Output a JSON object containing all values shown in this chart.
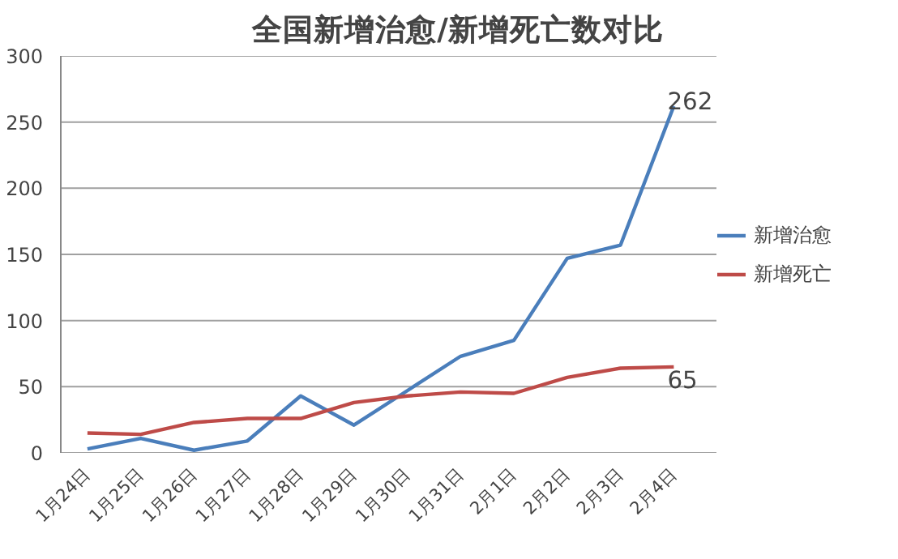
{
  "chart_data": {
    "type": "line",
    "title": "全国新增治愈/新增死亡数对比",
    "categories": [
      "1月24日",
      "1月25日",
      "1月26日",
      "1月27日",
      "1月28日",
      "1月29日",
      "1月30日",
      "1月31日",
      "2月1日",
      "2月2日",
      "2月3日",
      "2月4日"
    ],
    "series": [
      {
        "name": "新增治愈",
        "color": "#4a7ebb",
        "values": [
          3,
          11,
          2,
          9,
          43,
          21,
          47,
          73,
          85,
          147,
          157,
          262
        ]
      },
      {
        "name": "新增死亡",
        "color": "#be4b48",
        "values": [
          15,
          14,
          23,
          26,
          26,
          38,
          43,
          46,
          45,
          57,
          64,
          65
        ]
      }
    ],
    "annotations": [
      {
        "text": "262",
        "x": "2月4日",
        "y": 262
      },
      {
        "text": "65",
        "x": "2月4日",
        "y": 65
      }
    ],
    "ylim": [
      0,
      300
    ],
    "yticks": [
      0,
      50,
      100,
      150,
      200,
      250,
      300
    ],
    "grid": "y",
    "legend": "right",
    "marker": "none",
    "line_style": "solid"
  }
}
